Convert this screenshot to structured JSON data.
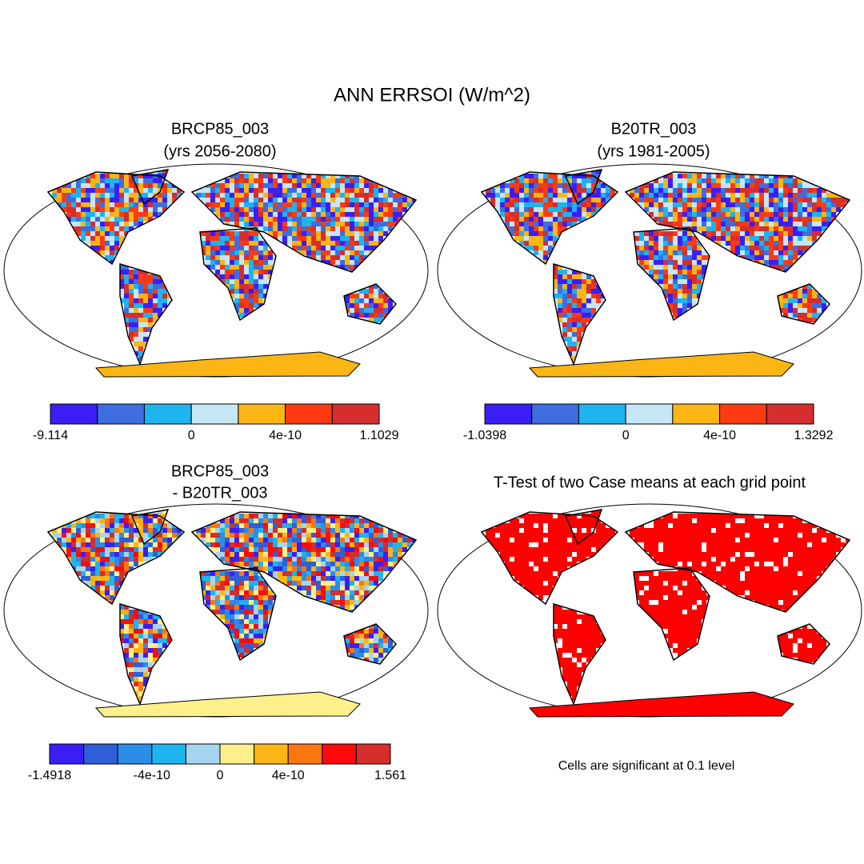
{
  "title": "ANN ERRSOI (W/m^2)",
  "panels": [
    {
      "title": [
        "BRCP85_003",
        "(yrs 2056-2080)"
      ],
      "colorbar": {
        "colors": [
          "#3a1ff5",
          "#3c6ee0",
          "#1db4f0",
          "#c5e6f5",
          "#fbb515",
          "#fe3a10",
          "#d62d2d"
        ],
        "labels": [
          "-9.114",
          null,
          null,
          "0",
          null,
          "4e-10",
          null,
          "1.1029"
        ]
      }
    },
    {
      "title": [
        "B20TR_003",
        "(yrs 1981-2005)"
      ],
      "colorbar": {
        "colors": [
          "#3a1ff5",
          "#3c6ee0",
          "#1db4f0",
          "#c5e6f5",
          "#fbb515",
          "#fe3a10",
          "#d62d2d"
        ],
        "labels": [
          "-1.0398",
          null,
          null,
          "0",
          null,
          "4e-10",
          null,
          "1.3292"
        ]
      }
    },
    {
      "title": [
        "BRCP85_003",
        "- B20TR_003"
      ],
      "colorbar": {
        "colors": [
          "#3a1ff5",
          "#2f5fd8",
          "#2c8de8",
          "#1db4f0",
          "#a6d5f0",
          "#fdf08a",
          "#fbb515",
          "#fd7610",
          "#fe0a0a",
          "#d62d2d"
        ],
        "labels": [
          "-1.4918",
          null,
          null,
          "-4e-10",
          null,
          "0",
          null,
          "4e-10",
          null,
          null,
          "1.561"
        ]
      }
    },
    {
      "title": [
        "T-Test of two Case means at each grid point"
      ],
      "color": "#ff0000",
      "note": "Cells are significant at 0.1 level"
    }
  ]
}
